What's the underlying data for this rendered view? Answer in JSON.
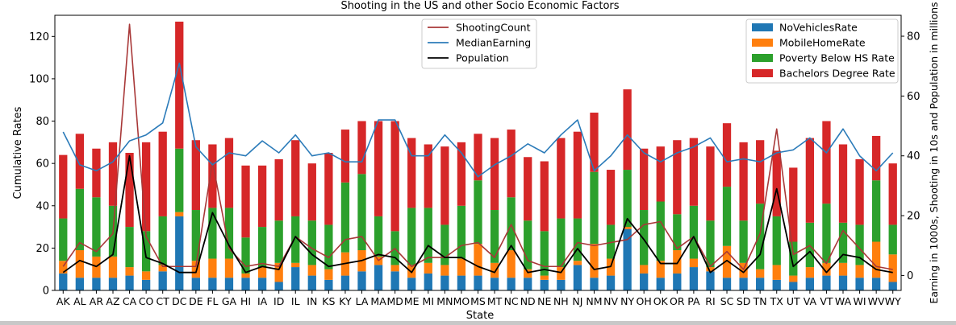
{
  "chart_data": {
    "type": "bar",
    "title": "Shooting in the US and other Socio Economic Factors",
    "xlabel": "State",
    "ylabel": "Cumulative Rates",
    "y2label": "Earning in 1000s, Shooting in 10s and Population in millions",
    "ylim": [
      0,
      130
    ],
    "y2lim": [
      -5,
      87
    ],
    "yticks": [
      0,
      20,
      40,
      60,
      80,
      100,
      120
    ],
    "y2ticks": [
      0,
      20,
      40,
      60,
      80
    ],
    "stacked": true,
    "grid": false,
    "categories": [
      "AK",
      "AL",
      "AR",
      "AZ",
      "CA",
      "CO",
      "CT",
      "DC",
      "DE",
      "FL",
      "GA",
      "HI",
      "IA",
      "ID",
      "IL",
      "IN",
      "KS",
      "KY",
      "LA",
      "MA",
      "MD",
      "ME",
      "MI",
      "MN",
      "MO",
      "MS",
      "MT",
      "NC",
      "ND",
      "NE",
      "NH",
      "NJ",
      "NM",
      "NV",
      "NY",
      "OH",
      "OK",
      "OR",
      "PA",
      "RI",
      "SC",
      "SD",
      "TN",
      "TX",
      "UT",
      "VA",
      "VT",
      "WA",
      "WI",
      "WV",
      "WY"
    ],
    "bar_series": [
      {
        "name": "NoVehiclesRate",
        "color": "#1f77b4",
        "values": [
          8,
          6,
          6,
          6,
          7,
          5,
          9,
          35,
          6,
          6,
          6,
          6,
          6,
          4,
          11,
          7,
          5,
          7,
          9,
          12,
          9,
          6,
          8,
          7,
          7,
          7,
          6,
          6,
          6,
          5,
          5,
          12,
          6,
          7,
          29,
          8,
          6,
          8,
          11,
          9,
          6,
          6,
          6,
          5,
          4,
          6,
          7,
          7,
          6,
          6,
          4
        ]
      },
      {
        "name": "MobileHomeRate",
        "color": "#ff7f0e",
        "values": [
          6,
          13,
          10,
          10,
          4,
          4,
          3,
          2,
          8,
          9,
          9,
          2,
          5,
          9,
          2,
          5,
          5,
          11,
          10,
          4,
          3,
          6,
          5,
          5,
          8,
          15,
          7,
          13,
          4,
          2,
          6,
          2,
          16,
          8,
          1,
          4,
          8,
          11,
          4,
          2,
          15,
          7,
          4,
          7,
          3,
          5,
          6,
          6,
          6,
          17,
          13
        ]
      },
      {
        "name": "Poverty Below HS Rate",
        "color": "#2ca02c",
        "values": [
          20,
          29,
          28,
          24,
          19,
          19,
          23,
          30,
          24,
          24,
          24,
          17,
          19,
          20,
          22,
          21,
          21,
          33,
          36,
          19,
          16,
          27,
          26,
          19,
          25,
          30,
          25,
          25,
          23,
          21,
          23,
          20,
          34,
          16,
          27,
          26,
          28,
          17,
          25,
          22,
          28,
          20,
          31,
          23,
          16,
          21,
          28,
          19,
          19,
          29,
          14
        ]
      },
      {
        "name": "Bachelors Degree Rate",
        "color": "#d62728",
        "values": [
          30,
          26,
          23,
          30,
          35,
          42,
          40,
          60,
          33,
          30,
          33,
          34,
          29,
          29,
          36,
          27,
          34,
          25,
          25,
          45,
          52,
          33,
          30,
          37,
          30,
          22,
          34,
          32,
          30,
          33,
          38,
          41,
          28,
          26,
          38,
          29,
          26,
          35,
          32,
          35,
          30,
          37,
          30,
          31,
          35,
          40,
          39,
          37,
          31,
          21,
          29
        ]
      }
    ],
    "line_series": [
      {
        "name": "ShootingCount",
        "color": "#a83838",
        "axis": "right",
        "values": [
          3,
          11,
          8,
          14,
          84,
          13,
          3,
          3,
          3,
          38,
          9,
          3,
          4,
          3,
          13,
          9,
          6,
          12,
          13,
          5,
          9,
          3,
          6,
          6,
          10,
          11,
          6,
          17,
          5,
          3,
          3,
          11,
          10,
          11,
          12,
          17,
          18,
          9,
          13,
          3,
          8,
          2,
          14,
          49,
          7,
          10,
          4,
          15,
          9,
          3,
          2
        ]
      },
      {
        "name": "MedianEarning",
        "color": "#2b7bb9",
        "axis": "right",
        "values": [
          48,
          37,
          35,
          38,
          45,
          47,
          51,
          71,
          43,
          37,
          41,
          40,
          45,
          41,
          47,
          40,
          41,
          38,
          38,
          52,
          52,
          40,
          40,
          47,
          41,
          33,
          37,
          40,
          44,
          41,
          47,
          52,
          35,
          40,
          47,
          41,
          38,
          41,
          43,
          46,
          38,
          39,
          38,
          41,
          42,
          46,
          41,
          49,
          40,
          35,
          41
        ]
      },
      {
        "name": "Population",
        "color": "#000000",
        "axis": "right",
        "values": [
          1,
          5,
          3,
          7,
          40,
          6,
          4,
          1,
          1,
          21,
          10,
          1,
          3,
          2,
          13,
          7,
          3,
          4,
          5,
          7,
          6,
          1,
          10,
          6,
          6,
          3,
          1,
          10,
          1,
          2,
          1,
          9,
          2,
          3,
          19,
          12,
          4,
          4,
          13,
          1,
          5,
          1,
          7,
          29,
          3,
          8,
          1,
          7,
          6,
          2,
          1
        ]
      }
    ],
    "legends": [
      {
        "placement": "upper-center",
        "series": [
          "ShootingCount",
          "MedianEarning",
          "Population"
        ]
      },
      {
        "placement": "upper-right",
        "series": [
          "NoVehiclesRate",
          "MobileHomeRate",
          "Poverty Below HS Rate",
          "Bachelors Degree Rate"
        ]
      }
    ]
  }
}
